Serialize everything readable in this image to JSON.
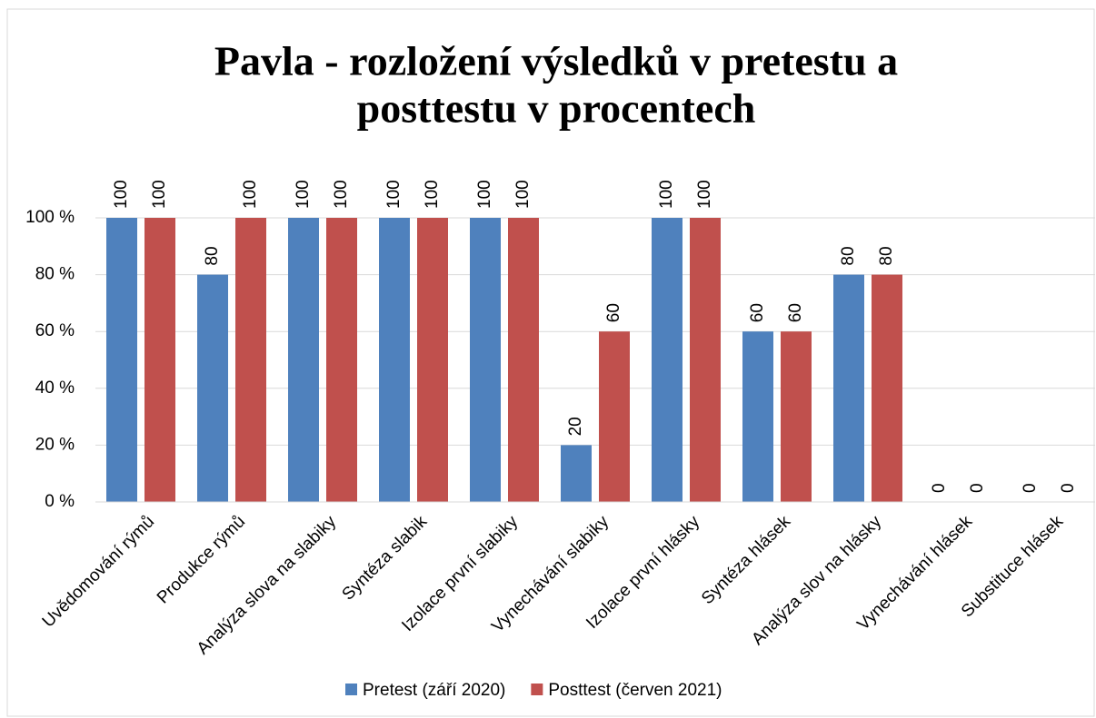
{
  "chart_data": {
    "type": "bar",
    "title": [
      "Pavla - rozložení výsledků v pretestu a",
      "posttestu v procentech"
    ],
    "categories": [
      "Uvědomování rýmů",
      "Produkce rýmů",
      "Analýza slova na slabiky",
      "Syntéza slabik",
      "Izolace první slabiky",
      "Vynechávání slabiky",
      "Izolace první hlásky",
      "Syntéza hlásek",
      "Analýza slov na hlásky",
      "Vynechávání hlásek",
      "Substituce hlásek"
    ],
    "series": [
      {
        "name": "Pretest (září 2020)",
        "color": "#4f81bd",
        "values": [
          100,
          80,
          100,
          100,
          100,
          20,
          100,
          60,
          80,
          0,
          0
        ]
      },
      {
        "name": "Posttest (červen 2021)",
        "color": "#c0504d",
        "values": [
          100,
          100,
          100,
          100,
          100,
          60,
          100,
          60,
          80,
          0,
          0
        ]
      }
    ],
    "ylim": [
      0,
      100
    ],
    "yticks": [
      {
        "value": 0,
        "label": "0 %"
      },
      {
        "value": 20,
        "label": "20 %"
      },
      {
        "value": 40,
        "label": "40 %"
      },
      {
        "value": 60,
        "label": "60 %"
      },
      {
        "value": 80,
        "label": "80 %"
      },
      {
        "value": 100,
        "label": "100 %"
      }
    ],
    "grid": true,
    "legend": "bottom"
  }
}
